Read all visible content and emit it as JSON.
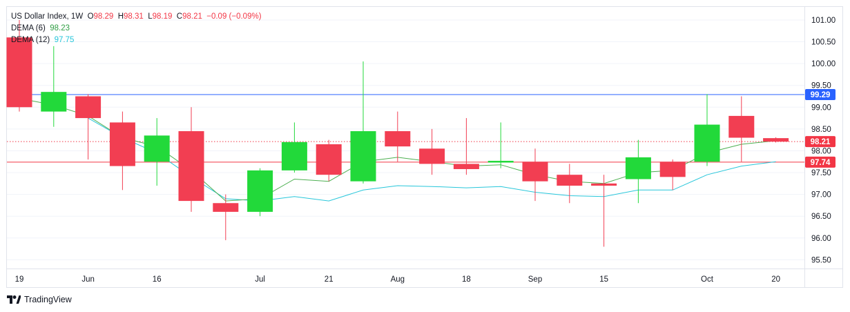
{
  "legend": {
    "symbol": "US Dollar Index, 1W",
    "o_label": "O",
    "o_value": "98.29",
    "h_label": "H",
    "h_value": "98.31",
    "l_label": "L",
    "l_value": "98.19",
    "c_label": "C",
    "c_value": "98.21",
    "change": "−0.09 (−0.09%)",
    "dema6_label": "DEMA (6)",
    "dema6_value": "98.23",
    "dema12_label": "DEMA (12)",
    "dema12_value": "97.75"
  },
  "brand": {
    "name": "TradingView"
  },
  "colors": {
    "up": "#22d93a",
    "down": "#f23e52",
    "dema6": "#4caf50",
    "dema12": "#26c6da",
    "blue_line": "#2962ff",
    "red_line": "#f23645"
  },
  "chart_data": {
    "type": "candlestick",
    "title": "US Dollar Index, 1W",
    "ylim": [
      95.3,
      101.3
    ],
    "yticks": [
      "101.00",
      "100.50",
      "100.00",
      "99.50",
      "99.00",
      "98.50",
      "98.00",
      "97.50",
      "97.00",
      "96.50",
      "96.00",
      "95.50"
    ],
    "xticks": [
      {
        "label": "19",
        "index": 0
      },
      {
        "label": "Jun",
        "index": 2
      },
      {
        "label": "16",
        "index": 4
      },
      {
        "label": "Jul",
        "index": 7
      },
      {
        "label": "21",
        "index": 9
      },
      {
        "label": "Aug",
        "index": 11
      },
      {
        "label": "18",
        "index": 13
      },
      {
        "label": "Sep",
        "index": 15
      },
      {
        "label": "15",
        "index": 17
      },
      {
        "label": "Oct",
        "index": 20
      },
      {
        "label": "20",
        "index": 22
      }
    ],
    "candles": [
      {
        "o": 100.6,
        "h": 101.0,
        "l": 98.9,
        "c": 99.0
      },
      {
        "o": 98.9,
        "h": 100.4,
        "l": 98.55,
        "c": 99.35
      },
      {
        "o": 99.25,
        "h": 99.3,
        "l": 97.8,
        "c": 98.75
      },
      {
        "o": 98.65,
        "h": 98.9,
        "l": 97.1,
        "c": 97.65
      },
      {
        "o": 97.75,
        "h": 98.75,
        "l": 97.2,
        "c": 98.35
      },
      {
        "o": 98.45,
        "h": 99.0,
        "l": 96.6,
        "c": 96.85
      },
      {
        "o": 96.8,
        "h": 97.0,
        "l": 95.95,
        "c": 96.6
      },
      {
        "o": 96.6,
        "h": 97.6,
        "l": 96.5,
        "c": 97.55
      },
      {
        "o": 97.55,
        "h": 98.65,
        "l": 97.5,
        "c": 98.2
      },
      {
        "o": 98.15,
        "h": 98.25,
        "l": 97.3,
        "c": 97.45
      },
      {
        "o": 97.3,
        "h": 100.05,
        "l": 97.25,
        "c": 98.45
      },
      {
        "o": 98.45,
        "h": 98.9,
        "l": 97.75,
        "c": 98.1
      },
      {
        "o": 98.05,
        "h": 98.5,
        "l": 97.45,
        "c": 97.7
      },
      {
        "o": 97.7,
        "h": 98.75,
        "l": 97.45,
        "c": 97.58
      },
      {
        "o": 97.73,
        "h": 98.65,
        "l": 97.6,
        "c": 97.77
      },
      {
        "o": 97.75,
        "h": 98.05,
        "l": 96.85,
        "c": 97.3
      },
      {
        "o": 97.45,
        "h": 97.7,
        "l": 96.8,
        "c": 97.2
      },
      {
        "o": 97.25,
        "h": 97.45,
        "l": 95.8,
        "c": 97.2
      },
      {
        "o": 97.35,
        "h": 98.25,
        "l": 96.8,
        "c": 97.85
      },
      {
        "o": 97.75,
        "h": 97.8,
        "l": 97.1,
        "c": 97.4
      },
      {
        "o": 97.75,
        "h": 99.3,
        "l": 97.65,
        "c": 98.6
      },
      {
        "o": 98.8,
        "h": 99.25,
        "l": 97.75,
        "c": 98.3
      },
      {
        "o": 98.29,
        "h": 98.31,
        "l": 98.19,
        "c": 98.21
      }
    ],
    "dema6": [
      99.2,
      99.05,
      98.8,
      98.3,
      98.1,
      97.55,
      96.85,
      96.9,
      97.35,
      97.3,
      97.75,
      97.85,
      97.75,
      97.65,
      97.68,
      97.45,
      97.3,
      97.25,
      97.5,
      97.55,
      97.95,
      98.15,
      98.23
    ],
    "dema12": [
      null,
      null,
      98.75,
      98.3,
      97.95,
      97.4,
      96.9,
      96.85,
      96.95,
      96.85,
      97.1,
      97.2,
      97.18,
      97.15,
      97.18,
      97.05,
      96.97,
      96.95,
      97.1,
      97.1,
      97.45,
      97.65,
      97.75
    ],
    "price_lines": [
      {
        "value": 99.29,
        "label": "99.29",
        "color": "#2962ff",
        "style": "solid"
      },
      {
        "value": 98.21,
        "label": "98.21",
        "color": "#f23645",
        "style": "dotted"
      },
      {
        "value": 97.74,
        "label": "97.74",
        "color": "#f23645",
        "style": "solid"
      }
    ]
  }
}
